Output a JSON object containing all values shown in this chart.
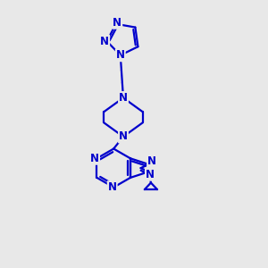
{
  "bg_color": "#e8e8e8",
  "bond_color": "#0000cc",
  "atom_color": "#0000cc",
  "line_width": 1.6,
  "font_size": 8.5,
  "font_weight": "bold",
  "xlim": [
    0,
    10
  ],
  "ylim": [
    0,
    10
  ]
}
